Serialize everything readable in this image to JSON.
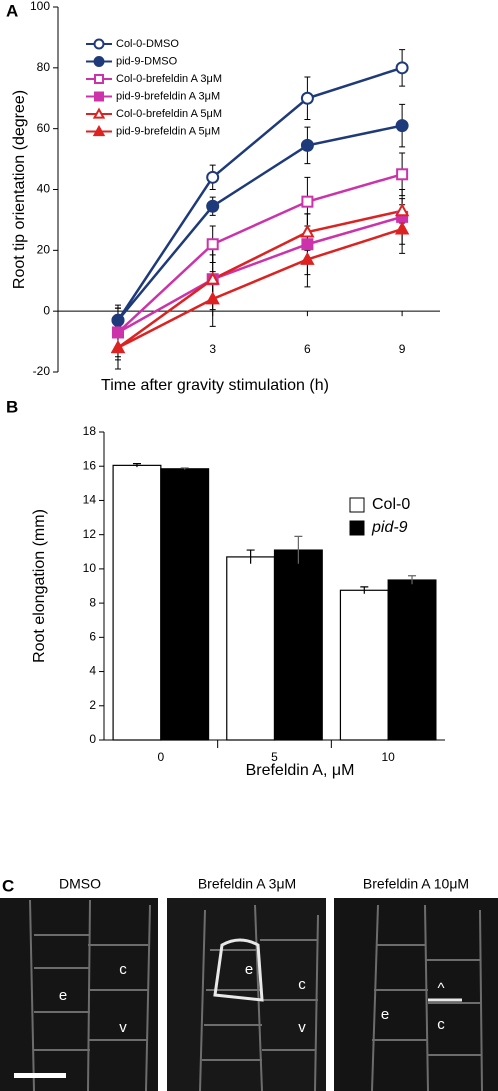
{
  "chart_data": [
    {
      "type": "line",
      "panel_label": "A",
      "x_label": "Time after gravity stimulation (h)",
      "y_label": "Root tip orientation (degree)",
      "x": [
        0,
        3,
        6,
        9
      ],
      "xlim": [
        -1.9,
        10.2
      ],
      "xticks": [
        3,
        6,
        9
      ],
      "ylim": [
        -20,
        100
      ],
      "yticks": [
        -20,
        0,
        20,
        40,
        60,
        80,
        100
      ],
      "series": [
        {
          "name": "Col-0-DMSO",
          "color": "#1f3a7a",
          "marker": "circle",
          "filled": false,
          "values": [
            -3,
            44,
            70,
            80
          ],
          "errors": [
            4,
            4,
            7,
            6
          ]
        },
        {
          "name": "pid-9-DMSO",
          "color": "#1f3a7a",
          "marker": "circle",
          "filled": true,
          "values": [
            -3,
            34.5,
            54.5,
            61
          ],
          "errors": [
            4,
            3,
            6,
            7
          ]
        },
        {
          "name": "Col-0-brefeldin A 3μM",
          "color": "#cc33aa",
          "marker": "square",
          "filled": false,
          "values": [
            -7,
            22,
            36,
            45
          ],
          "errors": [
            9,
            6,
            8,
            7
          ]
        },
        {
          "name": "pid-9-brefeldin A 3μM",
          "color": "#cc33aa",
          "marker": "square",
          "filled": true,
          "values": [
            -7,
            10.5,
            22,
            31
          ],
          "errors": [
            8,
            10,
            10,
            9
          ]
        },
        {
          "name": "Col-0-brefeldin A 5μM",
          "color": "#dd2222",
          "marker": "triangle",
          "filled": false,
          "values": [
            -12,
            10.5,
            26,
            33
          ],
          "errors": [
            7,
            8,
            6,
            4
          ]
        },
        {
          "name": "pid-9-brefeldin A 5μM",
          "color": "#dd2222",
          "marker": "triangle",
          "filled": true,
          "values": [
            -12,
            4,
            17,
            27
          ],
          "errors": [
            7,
            9,
            9,
            8
          ]
        }
      ]
    },
    {
      "type": "bar",
      "panel_label": "B",
      "x_label": "Brefeldin A, μM",
      "y_label": "Root elongation (mm)",
      "categories": [
        "0",
        "5",
        "10"
      ],
      "ylim": [
        0,
        18
      ],
      "yticks": [
        0,
        2,
        4,
        6,
        8,
        10,
        12,
        14,
        16,
        18
      ],
      "series": [
        {
          "name": "Col-0",
          "color": "#ffffff",
          "values": [
            16.05,
            10.7,
            8.75
          ],
          "errors": [
            0.1,
            0.4,
            0.2
          ]
        },
        {
          "name": "pid-9",
          "color": "#000000",
          "values": [
            15.85,
            11.1,
            9.35
          ],
          "errors": [
            0.05,
            0.8,
            0.25
          ]
        }
      ]
    }
  ],
  "panel_c": {
    "panel_label": "C",
    "images": [
      {
        "title": "DMSO",
        "labels": [
          "e",
          "c",
          "v"
        ]
      },
      {
        "title": "Brefeldin A 3μM",
        "labels": [
          "e",
          "c",
          "v"
        ]
      },
      {
        "title": "Brefeldin A 10μM",
        "labels": [
          "^",
          "e",
          "c"
        ]
      }
    ]
  }
}
